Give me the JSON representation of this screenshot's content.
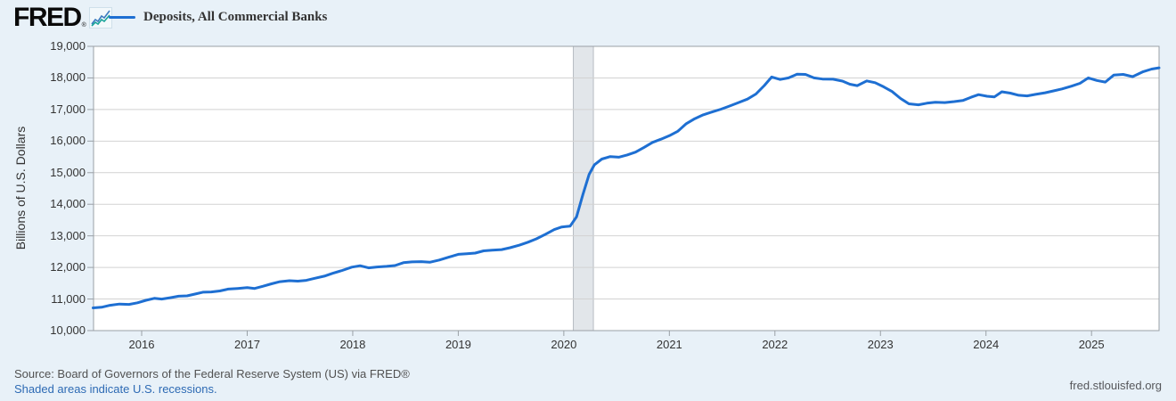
{
  "header": {
    "logo_text": "FRED",
    "logo_registered": "®",
    "legend_label": "Deposits, All Commercial Banks"
  },
  "footer": {
    "source": "Source: Board of Governors of the Federal Reserve System (US) via FRED®",
    "recession_note": "Shaded areas indicate U.S. recessions.",
    "site": "fred.stlouisfed.org"
  },
  "colors": {
    "page_background": "#e8f1f8",
    "plot_background": "#ffffff",
    "line": "#1e6fd2",
    "grid": "#d2d2d2",
    "plot_border": "#9aa0a6",
    "recession_band": "#e2e6ea",
    "recession_band_edge": "#b7bcc2",
    "link": "#2d6ab4",
    "tick_text": "#333333"
  },
  "chart_data": {
    "type": "line",
    "title": "Deposits, All Commercial Banks",
    "xlabel": "",
    "ylabel": "Billions of U.S. Dollars",
    "legend_position": "top-left",
    "grid": "horizontal-only",
    "xlim": [
      2015.544,
      2025.64
    ],
    "ylim": [
      10000,
      19000
    ],
    "x_ticks": [
      2016,
      2017,
      2018,
      2019,
      2020,
      2021,
      2022,
      2023,
      2024,
      2025
    ],
    "x_tick_labels": [
      "2016",
      "2017",
      "2018",
      "2019",
      "2020",
      "2021",
      "2022",
      "2023",
      "2024",
      "2025"
    ],
    "y_ticks": [
      10000,
      11000,
      12000,
      13000,
      14000,
      15000,
      16000,
      17000,
      18000,
      19000
    ],
    "y_tick_labels": [
      "10,000",
      "11,000",
      "12,000",
      "13,000",
      "14,000",
      "15,000",
      "16,000",
      "17,000",
      "18,000",
      "19,000"
    ],
    "recession_bands": [
      {
        "x0": 2020.09,
        "x1": 2020.28
      }
    ],
    "series": [
      {
        "name": "Deposits, All Commercial Banks",
        "points": [
          [
            2015.54,
            10720
          ],
          [
            2015.62,
            10740
          ],
          [
            2015.7,
            10800
          ],
          [
            2015.79,
            10840
          ],
          [
            2015.88,
            10830
          ],
          [
            2015.96,
            10880
          ],
          [
            2016.04,
            10960
          ],
          [
            2016.12,
            11020
          ],
          [
            2016.19,
            11000
          ],
          [
            2016.27,
            11040
          ],
          [
            2016.35,
            11090
          ],
          [
            2016.43,
            11100
          ],
          [
            2016.51,
            11160
          ],
          [
            2016.58,
            11215
          ],
          [
            2016.66,
            11225
          ],
          [
            2016.74,
            11255
          ],
          [
            2016.82,
            11315
          ],
          [
            2016.91,
            11335
          ],
          [
            2017.0,
            11360
          ],
          [
            2017.07,
            11335
          ],
          [
            2017.15,
            11405
          ],
          [
            2017.23,
            11480
          ],
          [
            2017.31,
            11550
          ],
          [
            2017.4,
            11580
          ],
          [
            2017.48,
            11565
          ],
          [
            2017.56,
            11590
          ],
          [
            2017.64,
            11655
          ],
          [
            2017.73,
            11725
          ],
          [
            2017.81,
            11815
          ],
          [
            2017.9,
            11905
          ],
          [
            2017.99,
            12010
          ],
          [
            2018.07,
            12055
          ],
          [
            2018.15,
            11985
          ],
          [
            2018.23,
            12015
          ],
          [
            2018.32,
            12035
          ],
          [
            2018.4,
            12060
          ],
          [
            2018.48,
            12150
          ],
          [
            2018.56,
            12175
          ],
          [
            2018.65,
            12185
          ],
          [
            2018.73,
            12165
          ],
          [
            2018.82,
            12235
          ],
          [
            2018.91,
            12325
          ],
          [
            2019.0,
            12415
          ],
          [
            2019.08,
            12435
          ],
          [
            2019.16,
            12455
          ],
          [
            2019.24,
            12525
          ],
          [
            2019.32,
            12545
          ],
          [
            2019.41,
            12565
          ],
          [
            2019.49,
            12625
          ],
          [
            2019.58,
            12705
          ],
          [
            2019.66,
            12800
          ],
          [
            2019.74,
            12905
          ],
          [
            2019.83,
            13055
          ],
          [
            2019.91,
            13200
          ],
          [
            2019.98,
            13280
          ],
          [
            2020.06,
            13310
          ],
          [
            2020.12,
            13600
          ],
          [
            2020.18,
            14300
          ],
          [
            2020.24,
            14950
          ],
          [
            2020.29,
            15250
          ],
          [
            2020.36,
            15430
          ],
          [
            2020.44,
            15510
          ],
          [
            2020.52,
            15490
          ],
          [
            2020.6,
            15560
          ],
          [
            2020.68,
            15650
          ],
          [
            2020.76,
            15800
          ],
          [
            2020.84,
            15960
          ],
          [
            2020.92,
            16060
          ],
          [
            2021.0,
            16170
          ],
          [
            2021.08,
            16310
          ],
          [
            2021.16,
            16550
          ],
          [
            2021.24,
            16710
          ],
          [
            2021.32,
            16830
          ],
          [
            2021.41,
            16930
          ],
          [
            2021.49,
            17010
          ],
          [
            2021.57,
            17110
          ],
          [
            2021.65,
            17210
          ],
          [
            2021.74,
            17330
          ],
          [
            2021.82,
            17490
          ],
          [
            2021.9,
            17760
          ],
          [
            2021.97,
            18030
          ],
          [
            2022.05,
            17950
          ],
          [
            2022.13,
            18000
          ],
          [
            2022.21,
            18120
          ],
          [
            2022.29,
            18110
          ],
          [
            2022.37,
            18000
          ],
          [
            2022.45,
            17965
          ],
          [
            2022.55,
            17960
          ],
          [
            2022.64,
            17900
          ],
          [
            2022.71,
            17800
          ],
          [
            2022.78,
            17755
          ],
          [
            2022.87,
            17905
          ],
          [
            2022.95,
            17850
          ],
          [
            2023.03,
            17720
          ],
          [
            2023.11,
            17570
          ],
          [
            2023.19,
            17350
          ],
          [
            2023.27,
            17180
          ],
          [
            2023.36,
            17150
          ],
          [
            2023.44,
            17200
          ],
          [
            2023.52,
            17230
          ],
          [
            2023.61,
            17220
          ],
          [
            2023.7,
            17250
          ],
          [
            2023.78,
            17285
          ],
          [
            2023.86,
            17390
          ],
          [
            2023.93,
            17470
          ],
          [
            2024.01,
            17420
          ],
          [
            2024.08,
            17400
          ],
          [
            2024.15,
            17560
          ],
          [
            2024.23,
            17520
          ],
          [
            2024.31,
            17450
          ],
          [
            2024.39,
            17430
          ],
          [
            2024.47,
            17480
          ],
          [
            2024.56,
            17530
          ],
          [
            2024.64,
            17590
          ],
          [
            2024.72,
            17650
          ],
          [
            2024.81,
            17740
          ],
          [
            2024.89,
            17830
          ],
          [
            2024.97,
            18000
          ],
          [
            2025.05,
            17920
          ],
          [
            2025.13,
            17870
          ],
          [
            2025.21,
            18090
          ],
          [
            2025.3,
            18110
          ],
          [
            2025.39,
            18040
          ],
          [
            2025.49,
            18200
          ],
          [
            2025.57,
            18280
          ],
          [
            2025.64,
            18320
          ]
        ]
      }
    ]
  }
}
